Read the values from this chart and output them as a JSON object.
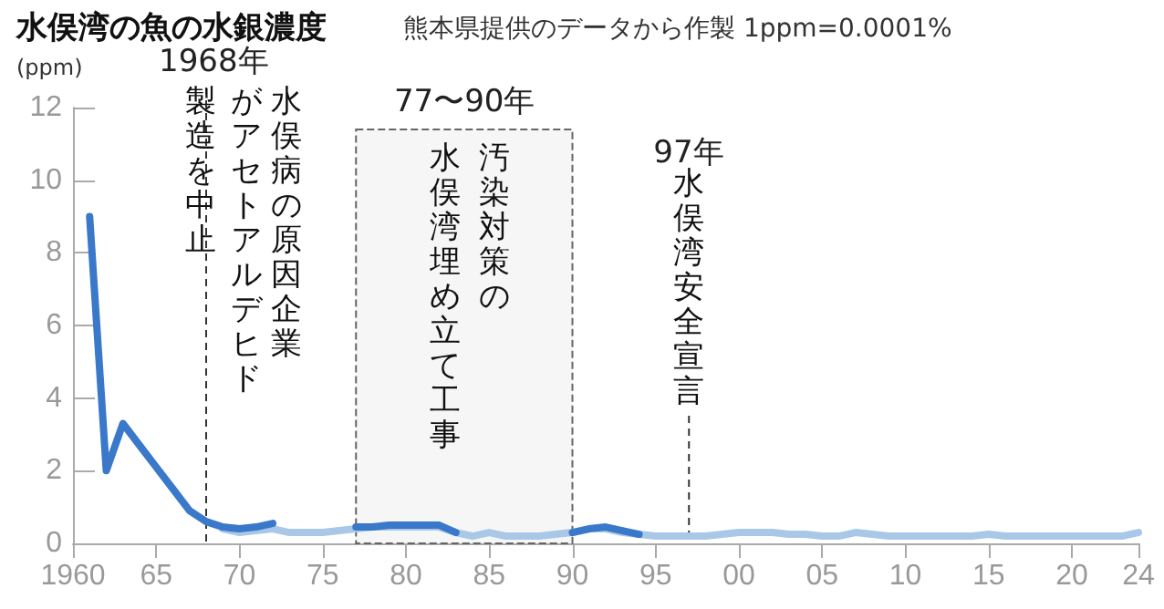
{
  "chart_data": {
    "type": "line",
    "title": "水俣湾の魚の水銀濃度",
    "subtitle": "熊本県提供のデータから作製 1ppm=0.0001%",
    "ylabel": "(ppm)",
    "x": [
      1961,
      1962,
      1963,
      1964,
      1965,
      1966,
      1967,
      1968,
      1969,
      1970,
      1971,
      1972,
      1973,
      1974,
      1975,
      1976,
      1977,
      1978,
      1979,
      1980,
      1981,
      1982,
      1983,
      1984,
      1985,
      1986,
      1987,
      1988,
      1989,
      1990,
      1991,
      1992,
      1993,
      1994,
      1995,
      1996,
      1997,
      1998,
      1999,
      2000,
      2001,
      2002,
      2003,
      2004,
      2005,
      2006,
      2007,
      2008,
      2009,
      2010,
      2011,
      2012,
      2013,
      2014,
      2015,
      2016,
      2017,
      2018,
      2019,
      2020,
      2021,
      2022,
      2023,
      2024
    ],
    "series": [
      {
        "color": "#3a78c9",
        "values": [
          9.0,
          2.0,
          3.3,
          2.7,
          2.1,
          1.5,
          0.9,
          0.6,
          0.45,
          0.4,
          0.45,
          0.55,
          null,
          null,
          null,
          null,
          0.45,
          0.45,
          0.5,
          0.5,
          0.5,
          0.5,
          0.3,
          null,
          null,
          null,
          null,
          null,
          null,
          0.3,
          0.4,
          0.45,
          0.35,
          0.25,
          null,
          null,
          null,
          null,
          null,
          null,
          null,
          null,
          null,
          null,
          null,
          null,
          null,
          null,
          null,
          null,
          null,
          null,
          null,
          null,
          null,
          null,
          null,
          null,
          null,
          null,
          null,
          null,
          null,
          null
        ]
      },
      {
        "color": "#a9c8e8",
        "values": [
          null,
          null,
          null,
          null,
          null,
          null,
          null,
          null,
          0.4,
          0.3,
          0.35,
          0.4,
          0.3,
          0.3,
          0.3,
          0.35,
          0.4,
          0.45,
          0.45,
          0.45,
          0.45,
          0.45,
          0.3,
          0.2,
          0.3,
          0.2,
          0.2,
          0.2,
          0.25,
          0.3,
          0.4,
          0.4,
          0.3,
          0.25,
          0.2,
          0.2,
          0.2,
          0.2,
          0.25,
          0.3,
          0.3,
          0.3,
          0.25,
          0.25,
          0.2,
          0.2,
          0.3,
          0.25,
          0.2,
          0.2,
          0.2,
          0.2,
          0.2,
          0.2,
          0.25,
          0.2,
          0.2,
          0.2,
          0.2,
          0.2,
          0.2,
          0.2,
          0.2,
          0.3
        ]
      }
    ],
    "xlim": [
      1960,
      2024
    ],
    "xticks": [
      1960,
      {
        "value": 1965,
        "label": "65"
      },
      {
        "value": 1970,
        "label": "70"
      },
      {
        "value": 1975,
        "label": "75"
      },
      {
        "value": 1980,
        "label": "80"
      },
      {
        "value": 1985,
        "label": "85"
      },
      {
        "value": 1990,
        "label": "90"
      },
      {
        "value": 1995,
        "label": "95"
      },
      {
        "value": 2000,
        "label": "00"
      },
      {
        "value": 2005,
        "label": "05"
      },
      {
        "value": 2010,
        "label": "10"
      },
      {
        "value": 2015,
        "label": "15"
      },
      {
        "value": 2020,
        "label": "20"
      },
      {
        "value": 2024,
        "label": "24"
      }
    ],
    "ylim": [
      0,
      12
    ],
    "yticks": [
      0,
      2,
      4,
      6,
      8,
      10,
      12
    ],
    "ref_lines": [
      {
        "axis": "x",
        "value": 1968,
        "label": "1968年",
        "line_style": "dashed"
      },
      {
        "axis": "x",
        "value": 1997,
        "label": "97年水俣湾安全宣言",
        "line_style": "dashed"
      }
    ],
    "bands": [
      {
        "axis": "x",
        "from": 1977,
        "to": 1990,
        "label": "77〜90年"
      }
    ],
    "annotations": [
      "水俣病の原因企業",
      "がアセトアルデヒド",
      "製造を中止",
      "汚染対策の",
      "水俣湾埋め立て工事"
    ],
    "grid": false,
    "marker": "none",
    "line_style": "solid"
  }
}
